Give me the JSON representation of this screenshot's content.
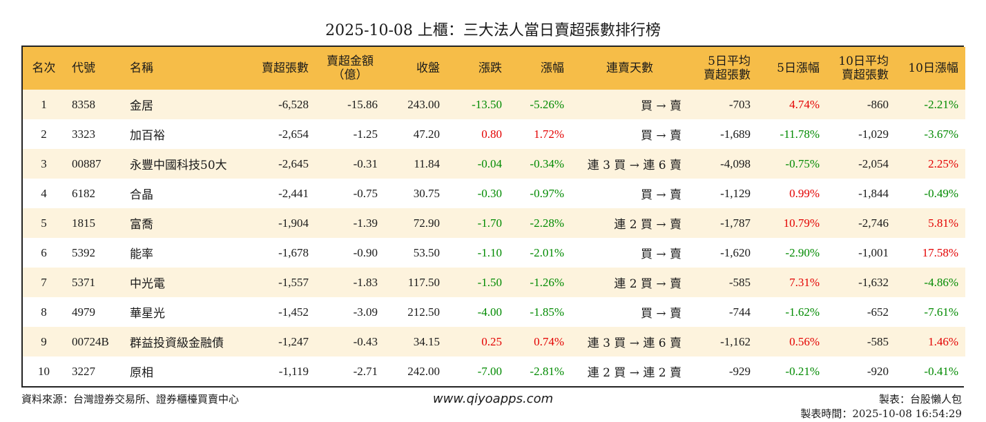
{
  "title": "2025-10-08 上櫃：三大法人當日賣超張數排行榜",
  "headers": {
    "rank": "名次",
    "code": "代號",
    "name": "名稱",
    "sell_shares": "賣超張數",
    "sell_amount_l1": "賣超金額",
    "sell_amount_l2": "（億）",
    "close": "收盤",
    "change": "漲跌",
    "pct": "漲幅",
    "streak": "連賣天數",
    "avg5_l1": "5日平均",
    "avg5_l2": "賣超張數",
    "pct5": "5日漲幅",
    "avg10_l1": "10日平均",
    "avg10_l2": "賣超張數",
    "pct10": "10日漲幅"
  },
  "rows": [
    {
      "rank": "1",
      "code": "8358",
      "name": "金居",
      "sell_shares": "-6,528",
      "sell_amount": "-15.86",
      "close": "243.00",
      "change": "-13.50",
      "pct": "-5.26%",
      "streak": "買 → 賣",
      "avg5": "-703",
      "pct5": "4.74%",
      "avg10": "-860",
      "pct10": "-2.21%"
    },
    {
      "rank": "2",
      "code": "3323",
      "name": "加百裕",
      "sell_shares": "-2,654",
      "sell_amount": "-1.25",
      "close": "47.20",
      "change": "0.80",
      "pct": "1.72%",
      "streak": "買 → 賣",
      "avg5": "-1,689",
      "pct5": "-11.78%",
      "avg10": "-1,029",
      "pct10": "-3.67%"
    },
    {
      "rank": "3",
      "code": "00887",
      "name": "永豐中國科技50大",
      "sell_shares": "-2,645",
      "sell_amount": "-0.31",
      "close": "11.84",
      "change": "-0.04",
      "pct": "-0.34%",
      "streak": "連 3 買 → 連 6 賣",
      "avg5": "-4,098",
      "pct5": "-0.75%",
      "avg10": "-2,054",
      "pct10": "2.25%"
    },
    {
      "rank": "4",
      "code": "6182",
      "name": "合晶",
      "sell_shares": "-2,441",
      "sell_amount": "-0.75",
      "close": "30.75",
      "change": "-0.30",
      "pct": "-0.97%",
      "streak": "買 → 賣",
      "avg5": "-1,129",
      "pct5": "0.99%",
      "avg10": "-1,844",
      "pct10": "-0.49%"
    },
    {
      "rank": "5",
      "code": "1815",
      "name": "富喬",
      "sell_shares": "-1,904",
      "sell_amount": "-1.39",
      "close": "72.90",
      "change": "-1.70",
      "pct": "-2.28%",
      "streak": "連 2 買 → 賣",
      "avg5": "-1,787",
      "pct5": "10.79%",
      "avg10": "-2,746",
      "pct10": "5.81%"
    },
    {
      "rank": "6",
      "code": "5392",
      "name": "能率",
      "sell_shares": "-1,678",
      "sell_amount": "-0.90",
      "close": "53.50",
      "change": "-1.10",
      "pct": "-2.01%",
      "streak": "買 → 賣",
      "avg5": "-1,620",
      "pct5": "-2.90%",
      "avg10": "-1,001",
      "pct10": "17.58%"
    },
    {
      "rank": "7",
      "code": "5371",
      "name": "中光電",
      "sell_shares": "-1,557",
      "sell_amount": "-1.83",
      "close": "117.50",
      "change": "-1.50",
      "pct": "-1.26%",
      "streak": "連 2 買 → 賣",
      "avg5": "-585",
      "pct5": "7.31%",
      "avg10": "-1,632",
      "pct10": "-4.86%"
    },
    {
      "rank": "8",
      "code": "4979",
      "name": "華星光",
      "sell_shares": "-1,452",
      "sell_amount": "-3.09",
      "close": "212.50",
      "change": "-4.00",
      "pct": "-1.85%",
      "streak": "買 → 賣",
      "avg5": "-744",
      "pct5": "-1.62%",
      "avg10": "-652",
      "pct10": "-7.61%"
    },
    {
      "rank": "9",
      "code": "00724B",
      "name": "群益投資級金融債",
      "sell_shares": "-1,247",
      "sell_amount": "-0.43",
      "close": "34.15",
      "change": "0.25",
      "pct": "0.74%",
      "streak": "連 3 買 → 連 6 賣",
      "avg5": "-1,162",
      "pct5": "0.56%",
      "avg10": "-585",
      "pct10": "1.46%"
    },
    {
      "rank": "10",
      "code": "3227",
      "name": "原相",
      "sell_shares": "-1,119",
      "sell_amount": "-2.71",
      "close": "242.00",
      "change": "-7.00",
      "pct": "-2.81%",
      "streak": "連 2 買 → 連 2 賣",
      "avg5": "-929",
      "pct5": "-0.21%",
      "avg10": "-920",
      "pct10": "-0.41%"
    }
  ],
  "colors": {
    "positive": "#e30000",
    "negative": "#008a00",
    "header_bg": "#f6bd48",
    "row_alt_bg": "#fdf3dd"
  },
  "footer": {
    "source": "資料來源：台灣證券交易所、證券櫃檯買賣中心",
    "website": "www.qiyoapps.com",
    "maker": "製表：台股懶人包",
    "made_time": "製表時間：2025-10-08 16:54:29"
  }
}
